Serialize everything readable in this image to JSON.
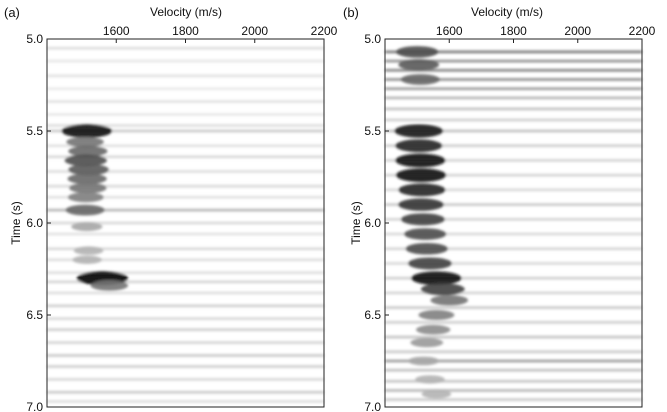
{
  "chart_data": [
    {
      "type": "heatmap",
      "panel_label": "(a)",
      "xlabel": "Velocity (m/s)",
      "ylabel": "Time (s)",
      "xticks": [
        1600,
        1800,
        2000,
        2200
      ],
      "yticks": [
        5.0,
        5.5,
        6.0,
        6.5,
        7.0
      ],
      "xlim": [
        1400,
        2200
      ],
      "ylim": [
        5.0,
        7.0
      ],
      "colormap": "white-to-black (semblance)",
      "background_events": [
        {
          "t": 5.05,
          "a": 0.14
        },
        {
          "t": 5.12,
          "a": 0.1
        },
        {
          "t": 5.2,
          "a": 0.12
        },
        {
          "t": 5.27,
          "a": 0.09
        },
        {
          "t": 5.34,
          "a": 0.12
        },
        {
          "t": 5.41,
          "a": 0.1
        },
        {
          "t": 5.47,
          "a": 0.14
        },
        {
          "t": 5.5,
          "a": 0.22
        },
        {
          "t": 5.58,
          "a": 0.12
        },
        {
          "t": 5.64,
          "a": 0.16
        },
        {
          "t": 5.72,
          "a": 0.14
        },
        {
          "t": 5.8,
          "a": 0.16
        },
        {
          "t": 5.86,
          "a": 0.12
        },
        {
          "t": 5.93,
          "a": 0.3
        },
        {
          "t": 6.0,
          "a": 0.16
        },
        {
          "t": 6.06,
          "a": 0.12
        },
        {
          "t": 6.14,
          "a": 0.16
        },
        {
          "t": 6.2,
          "a": 0.14
        },
        {
          "t": 6.27,
          "a": 0.14
        },
        {
          "t": 6.32,
          "a": 0.18
        },
        {
          "t": 6.38,
          "a": 0.14
        },
        {
          "t": 6.45,
          "a": 0.2
        },
        {
          "t": 6.52,
          "a": 0.16
        },
        {
          "t": 6.58,
          "a": 0.2
        },
        {
          "t": 6.65,
          "a": 0.18
        },
        {
          "t": 6.72,
          "a": 0.22
        },
        {
          "t": 6.78,
          "a": 0.2
        },
        {
          "t": 6.85,
          "a": 0.16
        },
        {
          "t": 6.92,
          "a": 0.22
        },
        {
          "t": 6.97,
          "a": 0.14
        }
      ],
      "peaks": [
        {
          "t": 5.5,
          "v": 1515,
          "a": 0.95
        },
        {
          "t": 5.56,
          "v": 1510,
          "a": 0.55
        },
        {
          "t": 5.61,
          "v": 1518,
          "a": 0.6
        },
        {
          "t": 5.66,
          "v": 1512,
          "a": 0.7
        },
        {
          "t": 5.71,
          "v": 1520,
          "a": 0.65
        },
        {
          "t": 5.76,
          "v": 1516,
          "a": 0.6
        },
        {
          "t": 5.81,
          "v": 1518,
          "a": 0.55
        },
        {
          "t": 5.86,
          "v": 1512,
          "a": 0.5
        },
        {
          "t": 5.93,
          "v": 1510,
          "a": 0.6
        },
        {
          "t": 6.02,
          "v": 1515,
          "a": 0.35
        },
        {
          "t": 6.15,
          "v": 1520,
          "a": 0.3
        },
        {
          "t": 6.2,
          "v": 1516,
          "a": 0.3
        },
        {
          "t": 6.3,
          "v": 1560,
          "a": 0.98
        },
        {
          "t": 6.34,
          "v": 1580,
          "a": 0.55
        }
      ]
    },
    {
      "type": "heatmap",
      "panel_label": "(b)",
      "xlabel": "Velocity (m/s)",
      "ylabel": "Time (s)",
      "xticks": [
        1600,
        1800,
        2000,
        2200
      ],
      "yticks": [
        5.0,
        5.5,
        6.0,
        6.5,
        7.0
      ],
      "xlim": [
        1400,
        2200
      ],
      "ylim": [
        5.0,
        7.0
      ],
      "colormap": "white-to-black (semblance)",
      "background_events": [
        {
          "t": 5.07,
          "a": 0.55
        },
        {
          "t": 5.12,
          "a": 0.45
        },
        {
          "t": 5.17,
          "a": 0.5
        },
        {
          "t": 5.22,
          "a": 0.45
        },
        {
          "t": 5.27,
          "a": 0.4
        },
        {
          "t": 5.32,
          "a": 0.3
        },
        {
          "t": 5.38,
          "a": 0.25
        },
        {
          "t": 5.44,
          "a": 0.2
        },
        {
          "t": 5.5,
          "a": 0.25
        },
        {
          "t": 5.58,
          "a": 0.2
        },
        {
          "t": 5.66,
          "a": 0.18
        },
        {
          "t": 5.74,
          "a": 0.18
        },
        {
          "t": 5.82,
          "a": 0.16
        },
        {
          "t": 5.9,
          "a": 0.22
        },
        {
          "t": 5.98,
          "a": 0.18
        },
        {
          "t": 6.06,
          "a": 0.16
        },
        {
          "t": 6.14,
          "a": 0.18
        },
        {
          "t": 6.22,
          "a": 0.16
        },
        {
          "t": 6.3,
          "a": 0.2
        },
        {
          "t": 6.38,
          "a": 0.18
        },
        {
          "t": 6.46,
          "a": 0.22
        },
        {
          "t": 6.54,
          "a": 0.2
        },
        {
          "t": 6.62,
          "a": 0.24
        },
        {
          "t": 6.7,
          "a": 0.22
        },
        {
          "t": 6.75,
          "a": 0.4
        },
        {
          "t": 6.8,
          "a": 0.26
        },
        {
          "t": 6.86,
          "a": 0.24
        },
        {
          "t": 6.91,
          "a": 0.3
        },
        {
          "t": 6.96,
          "a": 0.22
        }
      ],
      "peaks": [
        {
          "t": 5.07,
          "v": 1500,
          "a": 0.7
        },
        {
          "t": 5.14,
          "v": 1505,
          "a": 0.65
        },
        {
          "t": 5.22,
          "v": 1510,
          "a": 0.6
        },
        {
          "t": 5.5,
          "v": 1505,
          "a": 0.9
        },
        {
          "t": 5.58,
          "v": 1505,
          "a": 0.85
        },
        {
          "t": 5.66,
          "v": 1510,
          "a": 0.95
        },
        {
          "t": 5.74,
          "v": 1512,
          "a": 0.95
        },
        {
          "t": 5.82,
          "v": 1515,
          "a": 0.85
        },
        {
          "t": 5.9,
          "v": 1512,
          "a": 0.8
        },
        {
          "t": 5.98,
          "v": 1518,
          "a": 0.75
        },
        {
          "t": 6.06,
          "v": 1525,
          "a": 0.7
        },
        {
          "t": 6.14,
          "v": 1530,
          "a": 0.7
        },
        {
          "t": 6.22,
          "v": 1540,
          "a": 0.75
        },
        {
          "t": 6.3,
          "v": 1560,
          "a": 0.95
        },
        {
          "t": 6.36,
          "v": 1580,
          "a": 0.75
        },
        {
          "t": 6.42,
          "v": 1600,
          "a": 0.55
        },
        {
          "t": 6.5,
          "v": 1560,
          "a": 0.5
        },
        {
          "t": 6.58,
          "v": 1550,
          "a": 0.45
        },
        {
          "t": 6.65,
          "v": 1530,
          "a": 0.4
        },
        {
          "t": 6.75,
          "v": 1520,
          "a": 0.35
        },
        {
          "t": 6.85,
          "v": 1540,
          "a": 0.3
        },
        {
          "t": 6.93,
          "v": 1560,
          "a": 0.3
        }
      ]
    }
  ]
}
